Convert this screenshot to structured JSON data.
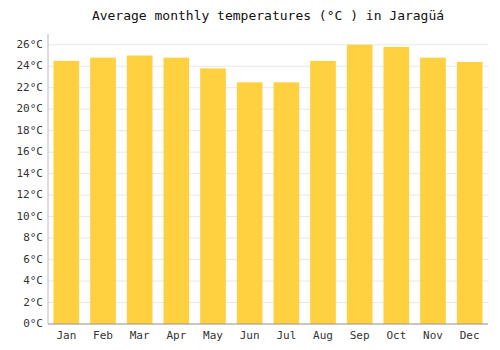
{
  "chart_data": {
    "type": "bar",
    "title": "Average monthly temperatures (°C ) in Jaragüá",
    "categories": [
      "Jan",
      "Feb",
      "Mar",
      "Apr",
      "May",
      "Jun",
      "Jul",
      "Aug",
      "Sep",
      "Oct",
      "Nov",
      "Dec"
    ],
    "values": [
      24.5,
      24.8,
      25.0,
      24.8,
      23.8,
      22.5,
      22.5,
      24.5,
      26.0,
      25.8,
      24.8,
      24.4
    ],
    "color": "#FFD040",
    "ylim": [
      0,
      27
    ],
    "yticks": [
      {
        "value": 0,
        "label": "0°C"
      },
      {
        "value": 2,
        "label": "2°C"
      },
      {
        "value": 4,
        "label": "4°C"
      },
      {
        "value": 6,
        "label": "6°C"
      },
      {
        "value": 8,
        "label": "8°C"
      },
      {
        "value": 10,
        "label": "10°C"
      },
      {
        "value": 12,
        "label": "12°C"
      },
      {
        "value": 14,
        "label": "14°C"
      },
      {
        "value": 16,
        "label": "16°C"
      },
      {
        "value": 18,
        "label": "18°C"
      },
      {
        "value": 20,
        "label": "20°C"
      },
      {
        "value": 22,
        "label": "22°C"
      },
      {
        "value": 24,
        "label": "24°C"
      },
      {
        "value": 26,
        "label": "26°C"
      }
    ],
    "grid": true
  }
}
